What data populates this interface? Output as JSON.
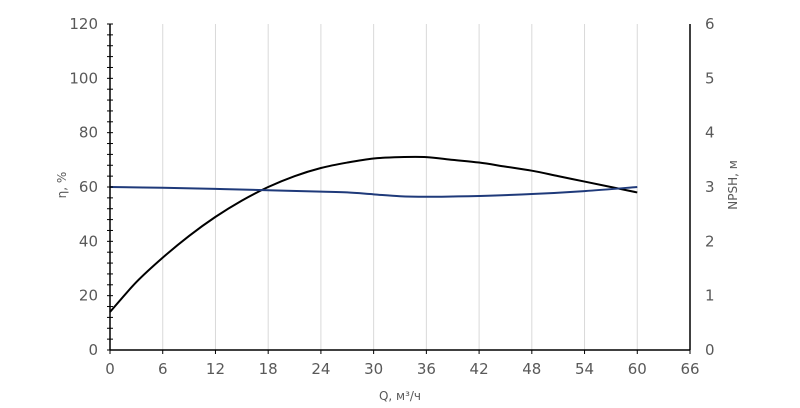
{
  "chart_data": {
    "type": "line",
    "xlabel": "Q, м³/ч",
    "ylabel_left": "η, %",
    "ylabel_right": "NPSH, м",
    "xlim": [
      0,
      66
    ],
    "ylim_left": [
      0,
      120
    ],
    "ylim_right": [
      0,
      6
    ],
    "x_ticks": [
      0,
      6,
      12,
      18,
      24,
      30,
      36,
      42,
      48,
      54,
      60,
      66
    ],
    "y_left_ticks": [
      0,
      20,
      40,
      60,
      80,
      100,
      120
    ],
    "y_right_ticks": [
      0,
      1,
      2,
      3,
      4,
      5,
      6
    ],
    "grid": "vertical",
    "series": [
      {
        "axis": "left",
        "color": "#000000",
        "x": [
          0,
          3,
          6,
          9,
          12,
          15,
          18,
          21,
          24,
          27,
          30,
          33,
          36,
          39,
          42,
          45,
          48,
          51,
          54,
          57,
          60
        ],
        "values": [
          14,
          25,
          34,
          42,
          49,
          55,
          60,
          64,
          67,
          69,
          70.5,
          71,
          71,
          70,
          69,
          67.5,
          66,
          64,
          62,
          60,
          58
        ]
      },
      {
        "axis": "right",
        "color": "#1f3a7a",
        "x": [
          0,
          6,
          12,
          18,
          24,
          27,
          30,
          33,
          36,
          39,
          42,
          48,
          54,
          60
        ],
        "values": [
          3.0,
          2.985,
          2.965,
          2.94,
          2.915,
          2.9,
          2.865,
          2.83,
          2.82,
          2.825,
          2.835,
          2.87,
          2.925,
          3.0
        ]
      }
    ]
  }
}
